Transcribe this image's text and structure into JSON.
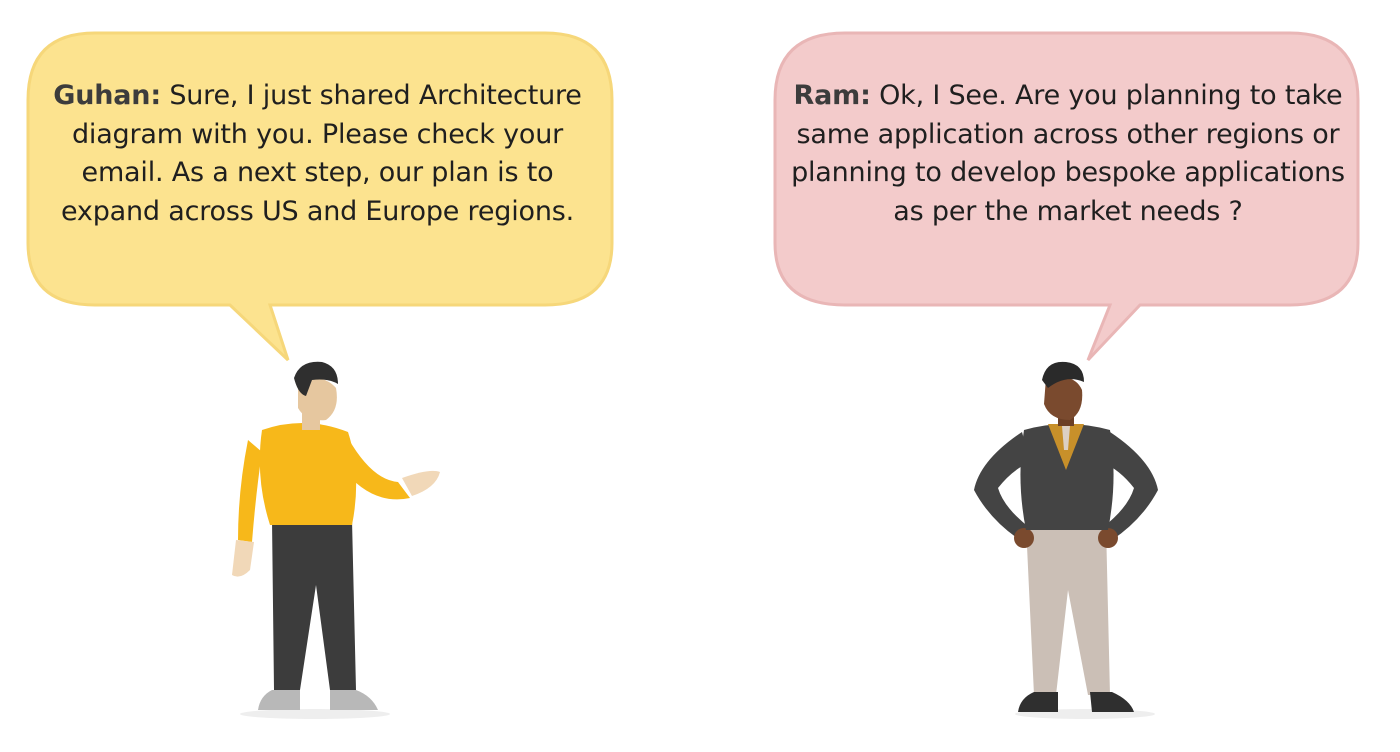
{
  "left_bubble": {
    "speaker": "Guhan:",
    "message": "Sure, I just shared Architecture diagram with you. Please check your email. As a next step, our plan is to expand across US and Europe regions.",
    "fill_color": "#fce38f",
    "stroke_color": "#f6d77a"
  },
  "right_bubble": {
    "speaker": "Ram:",
    "message": "Ok, I See. Are you planning to take same application across other regions or planning to develop bespoke applications as per the market needs ?",
    "fill_color": "#f3cbcb",
    "stroke_color": "#e9b6b6"
  },
  "characters": {
    "left": {
      "name": "Guhan",
      "shirt_color": "#f7b81a",
      "pants_color": "#3c3c3c"
    },
    "right": {
      "name": "Ram",
      "jacket_color": "#444444",
      "pants_color": "#cbbfb6"
    }
  }
}
